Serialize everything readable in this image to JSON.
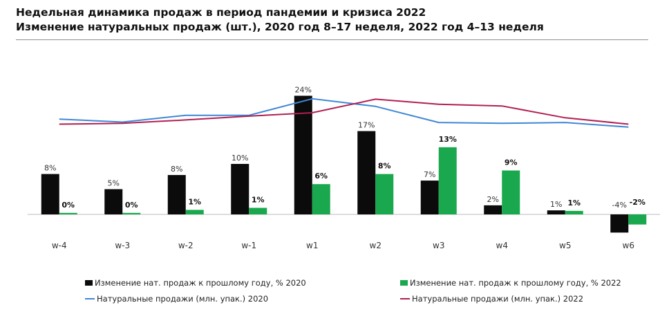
{
  "title": "Недельная динамика продаж в период пандемии и кризиса 2022",
  "subtitle": "Изменение натуральных продаж (шт.), 2020 год 8–17 неделя, 2022 год 4–13 неделя",
  "colors": {
    "bar_2020": "#0b0b0b",
    "bar_2022": "#1aa84e",
    "line_2020": "#3f87d6",
    "line_2022": "#b11f53",
    "axis": "#bbbbbb"
  },
  "chart_data": {
    "type": "bar",
    "categories": [
      "w-4",
      "w-3",
      "w-2",
      "w-1",
      "w1",
      "w2",
      "w3",
      "w4",
      "w5",
      "w6"
    ],
    "series": [
      {
        "name": "Изменение нат. продаж к прошлому году, % 2020",
        "kind": "bar",
        "values": [
          8.0,
          5.0,
          7.8,
          10.0,
          23.5,
          16.5,
          6.7,
          1.8,
          0.8,
          -3.6
        ],
        "labels": [
          "8%",
          "5%",
          "8%",
          "10%",
          "24%",
          "17%",
          "7%",
          "2%",
          "1%",
          "-4%"
        ]
      },
      {
        "name": "Изменение нат. продаж к прошлому году, % 2022",
        "kind": "bar",
        "values": [
          0.3,
          0.3,
          0.9,
          1.3,
          6.0,
          8.0,
          13.3,
          8.7,
          0.7,
          -2.0
        ],
        "labels": [
          "0%",
          "0%",
          "1%",
          "1%",
          "6%",
          "8%",
          "13%",
          "9%",
          "1%",
          "-2%"
        ]
      },
      {
        "name": "Натуральные продажи (млн. упак.) 2020",
        "kind": "line",
        "values": [
          22.5,
          21.8,
          23.4,
          23.4,
          27.3,
          25.5,
          21.7,
          21.5,
          21.7,
          20.6
        ]
      },
      {
        "name": "Натуральные продажи (млн. упак.) 2022",
        "kind": "line",
        "values": [
          21.3,
          21.5,
          22.3,
          23.2,
          24.0,
          27.2,
          26.0,
          25.6,
          22.8,
          21.3
        ]
      }
    ],
    "bar_ylim": [
      -5,
      30
    ],
    "line_ylim": [
      0,
      40
    ],
    "title": "Недельная динамика продаж в период пандемии и кризиса 2022",
    "subtitle": "Изменение натуральных продаж (шт.), 2020 год 8–17 неделя, 2022 год 4–13 неделя",
    "xlabel": "",
    "ylabel": "",
    "grid": false,
    "legend_position": "bottom"
  },
  "legend": [
    {
      "label": "Изменение нат. продаж к прошлому году, % 2020",
      "kind": "box",
      "color": "#0b0b0b"
    },
    {
      "label": "Изменение нат. продаж к прошлому году, % 2022",
      "kind": "box",
      "color": "#1aa84e"
    },
    {
      "label": "Натуральные продажи (млн. упак.) 2020",
      "kind": "line",
      "color": "#3f87d6"
    },
    {
      "label": "Натуральные продажи (млн. упак.) 2022",
      "kind": "line",
      "color": "#b11f53"
    }
  ]
}
